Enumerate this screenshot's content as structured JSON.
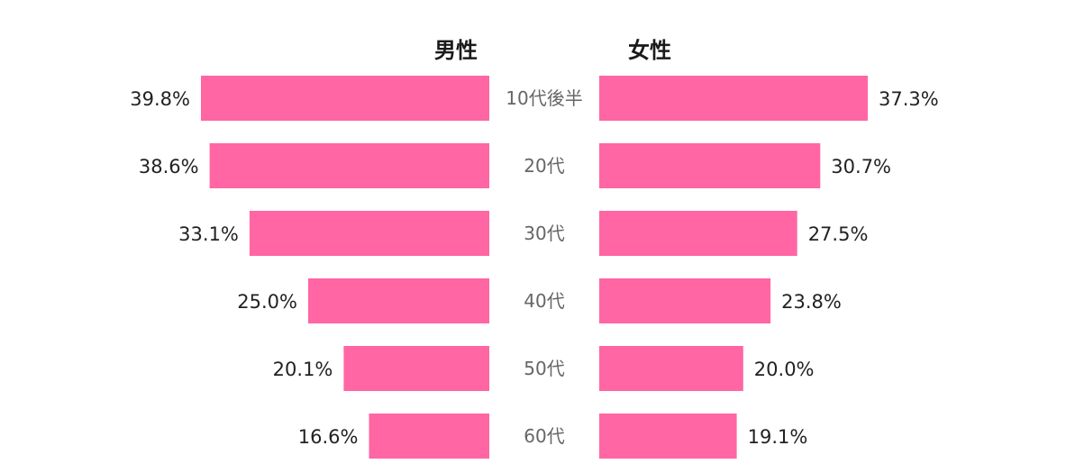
{
  "chart_data": {
    "type": "bar",
    "orientation": "horizontal-butterfly",
    "categories": [
      "10代後半",
      "20代",
      "30代",
      "40代",
      "50代",
      "60代"
    ],
    "series": [
      {
        "name": "男性",
        "values": [
          39.8,
          38.6,
          33.1,
          25.0,
          20.1,
          16.6
        ],
        "labels": [
          "39.8%",
          "38.6%",
          "33.1%",
          "25.0%",
          "20.1%",
          "16.6%"
        ],
        "side": "left"
      },
      {
        "name": "女性",
        "values": [
          37.3,
          30.7,
          27.5,
          23.8,
          20.0,
          19.1
        ],
        "labels": [
          "37.3%",
          "30.7%",
          "27.5%",
          "23.8%",
          "20.0%",
          "19.1%"
        ],
        "side": "right"
      }
    ],
    "bar_color": "#ff66a3",
    "category_color": "#666666",
    "value_label_color": "#222222",
    "unit": "%",
    "grid": false
  }
}
